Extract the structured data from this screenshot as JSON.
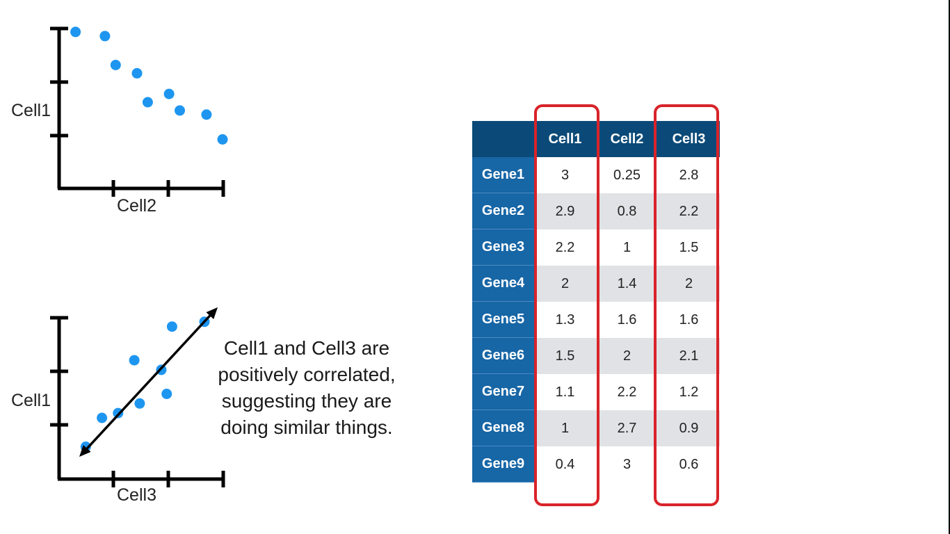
{
  "colors": {
    "point": "#1e96f0",
    "axis": "#000000",
    "header_dark": "#0b4a78",
    "header_row": "#1766a6",
    "stripe": "#e1e2e5",
    "highlight": "#d9232a"
  },
  "chart_data": [
    {
      "type": "scatter",
      "xlabel": "Cell2",
      "ylabel": "Cell1",
      "x": [
        0.25,
        0.8,
        1,
        1.4,
        1.6,
        2,
        2.2,
        2.7,
        3
      ],
      "y": [
        3,
        2.9,
        2.2,
        2,
        1.3,
        1.5,
        1.1,
        1,
        0.4
      ],
      "xlim": [
        -0.5,
        3
      ],
      "ylim": [
        -0.5,
        3.1
      ]
    },
    {
      "type": "scatter",
      "xlabel": "Cell3",
      "ylabel": "Cell1",
      "x": [
        2.8,
        2.2,
        1.5,
        2,
        1.6,
        2.1,
        1.2,
        0.9,
        0.6
      ],
      "y": [
        3,
        2.9,
        2.2,
        2,
        1.3,
        1.5,
        1.1,
        1,
        0.4
      ],
      "xlim": [
        0.3,
        3.2
      ],
      "ylim": [
        -0.1,
        3.2
      ],
      "trend_line": "double-headed arrow"
    },
    {
      "type": "table",
      "columns": [
        "Cell1",
        "Cell2",
        "Cell3"
      ],
      "rows": [
        {
          "gene": "Gene1",
          "values": [
            "3",
            "0.25",
            "2.8"
          ]
        },
        {
          "gene": "Gene2",
          "values": [
            "2.9",
            "0.8",
            "2.2"
          ]
        },
        {
          "gene": "Gene3",
          "values": [
            "2.2",
            "1",
            "1.5"
          ]
        },
        {
          "gene": "Gene4",
          "values": [
            "2",
            "1.4",
            "2"
          ]
        },
        {
          "gene": "Gene5",
          "values": [
            "1.3",
            "1.6",
            "1.6"
          ]
        },
        {
          "gene": "Gene6",
          "values": [
            "1.5",
            "2",
            "2.1"
          ]
        },
        {
          "gene": "Gene7",
          "values": [
            "1.1",
            "2.2",
            "1.2"
          ]
        },
        {
          "gene": "Gene8",
          "values": [
            "1",
            "2.7",
            "0.9"
          ]
        },
        {
          "gene": "Gene9",
          "values": [
            "0.4",
            "3",
            "0.6"
          ]
        }
      ],
      "highlighted_columns": [
        "Cell1",
        "Cell3"
      ]
    }
  ],
  "caption": {
    "lines": [
      "Cell1 and Cell3 are",
      "positively correlated,",
      "suggesting they are",
      "doing similar things."
    ]
  }
}
